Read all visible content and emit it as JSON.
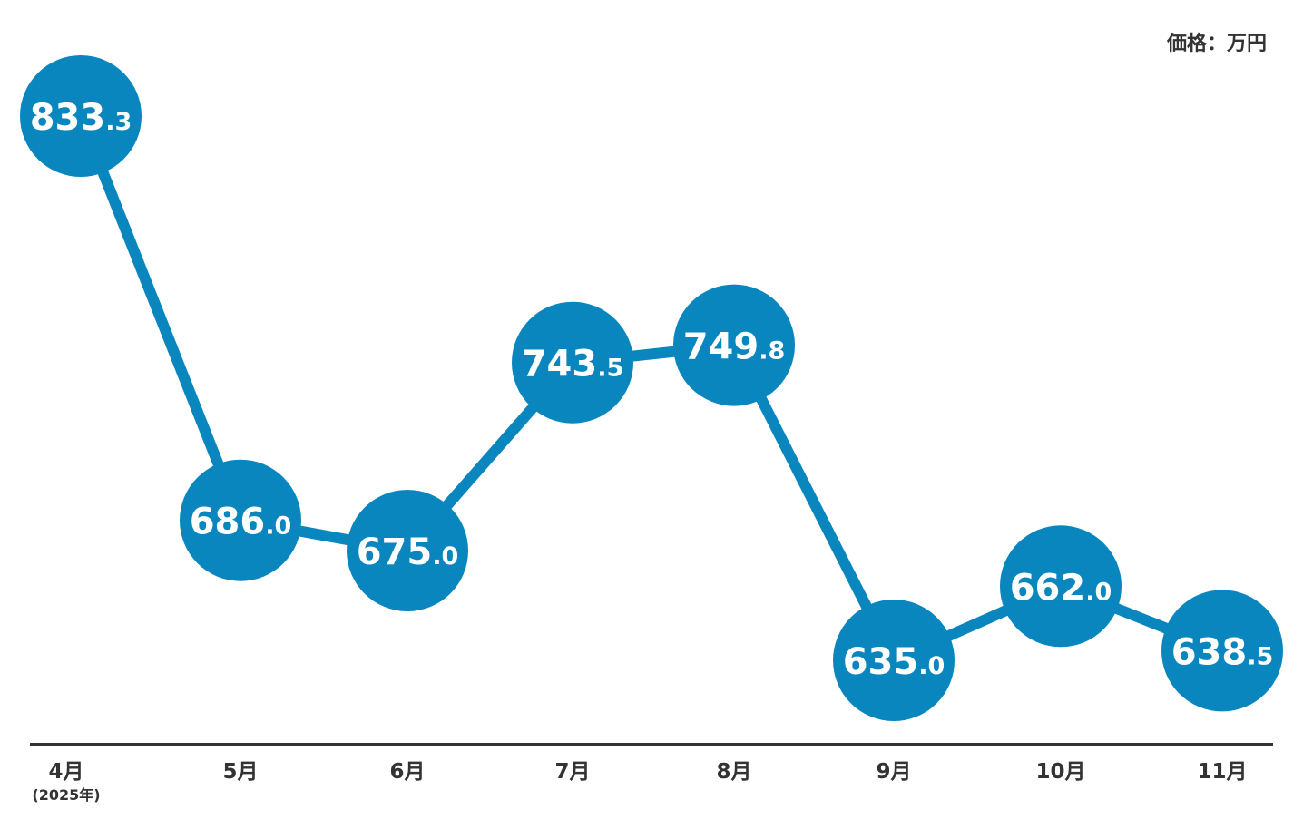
{
  "unit_label": "価格：万円",
  "year_note": "(2025年)",
  "chart_data": {
    "type": "line",
    "categories": [
      "4月",
      "5月",
      "6月",
      "7月",
      "8月",
      "9月",
      "10月",
      "11月"
    ],
    "series": [
      {
        "values": [
          833.3,
          686.0,
          675.0,
          743.5,
          749.8,
          635.0,
          662.0,
          638.5
        ]
      }
    ],
    "labels": [
      {
        "int": "833",
        "dec": ".3"
      },
      {
        "int": "686",
        "dec": ".0"
      },
      {
        "int": "675",
        "dec": ".0"
      },
      {
        "int": "743",
        "dec": ".5"
      },
      {
        "int": "749",
        "dec": ".8"
      },
      {
        "int": "635",
        "dec": ".0"
      },
      {
        "int": "662",
        "dec": ".0"
      },
      {
        "int": "638",
        "dec": ".5"
      }
    ],
    "ylim": [
      600,
      850
    ],
    "grid": false,
    "colors": {
      "line": "#0a86be",
      "marker": "#0a86be",
      "axis": "#333333",
      "label": "#ffffff",
      "text": "#333333"
    }
  }
}
